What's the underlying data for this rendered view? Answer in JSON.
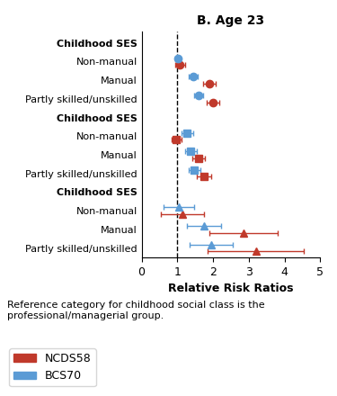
{
  "chart_data": {
    "type": "forest",
    "title": "B. Age 23",
    "x_label": "Relative Risk Ratios",
    "xlim": [
      0,
      5
    ],
    "xticks": [
      0,
      1,
      2,
      3,
      4,
      5
    ],
    "reference_line": 1.0,
    "note": "Reference category for childhood social class is the professional/managerial group.",
    "legend": "lower left",
    "groups": [
      {
        "label": "Childhood SES",
        "marker": "circle",
        "categories": [
          "Non-manual",
          "Manual",
          "Partly skilled/unskilled"
        ],
        "series": [
          {
            "name": "NCDS58",
            "color": "#C0392B",
            "values": [
              1.08,
              1.9,
              2.0
            ],
            "ci_low": [
              0.95,
              1.72,
              1.82
            ],
            "ci_high": [
              1.22,
              2.08,
              2.18
            ]
          },
          {
            "name": "BCS70",
            "color": "#5B9BD5",
            "values": [
              1.01,
              1.45,
              1.6
            ],
            "ci_low": [
              0.94,
              1.32,
              1.48
            ],
            "ci_high": [
              1.08,
              1.58,
              1.72
            ]
          }
        ]
      },
      {
        "label": "Childhood SES",
        "marker": "square",
        "categories": [
          "Non-manual",
          "Manual",
          "Partly skilled/unskilled"
        ],
        "series": [
          {
            "name": "NCDS58",
            "color": "#C0392B",
            "values": [
              0.98,
              1.6,
              1.75
            ],
            "ci_low": [
              0.85,
              1.42,
              1.55
            ],
            "ci_high": [
              1.11,
              1.78,
              1.95
            ]
          },
          {
            "name": "BCS70",
            "color": "#5B9BD5",
            "values": [
              1.28,
              1.38,
              1.48
            ],
            "ci_low": [
              1.12,
              1.22,
              1.32
            ],
            "ci_high": [
              1.44,
              1.54,
              1.64
            ]
          }
        ]
      },
      {
        "label": "Childhood SES",
        "marker": "triangle",
        "categories": [
          "Non-manual",
          "Manual",
          "Partly skilled/unskilled"
        ],
        "series": [
          {
            "name": "NCDS58",
            "color": "#C0392B",
            "values": [
              1.15,
              2.85,
              3.2
            ],
            "ci_low": [
              0.55,
              1.9,
              1.85
            ],
            "ci_high": [
              1.75,
              3.8,
              4.55
            ]
          },
          {
            "name": "BCS70",
            "color": "#5B9BD5",
            "values": [
              1.05,
              1.75,
              1.95
            ],
            "ci_low": [
              0.62,
              1.28,
              1.35
            ],
            "ci_high": [
              1.48,
              2.22,
              2.55
            ]
          }
        ]
      }
    ]
  }
}
